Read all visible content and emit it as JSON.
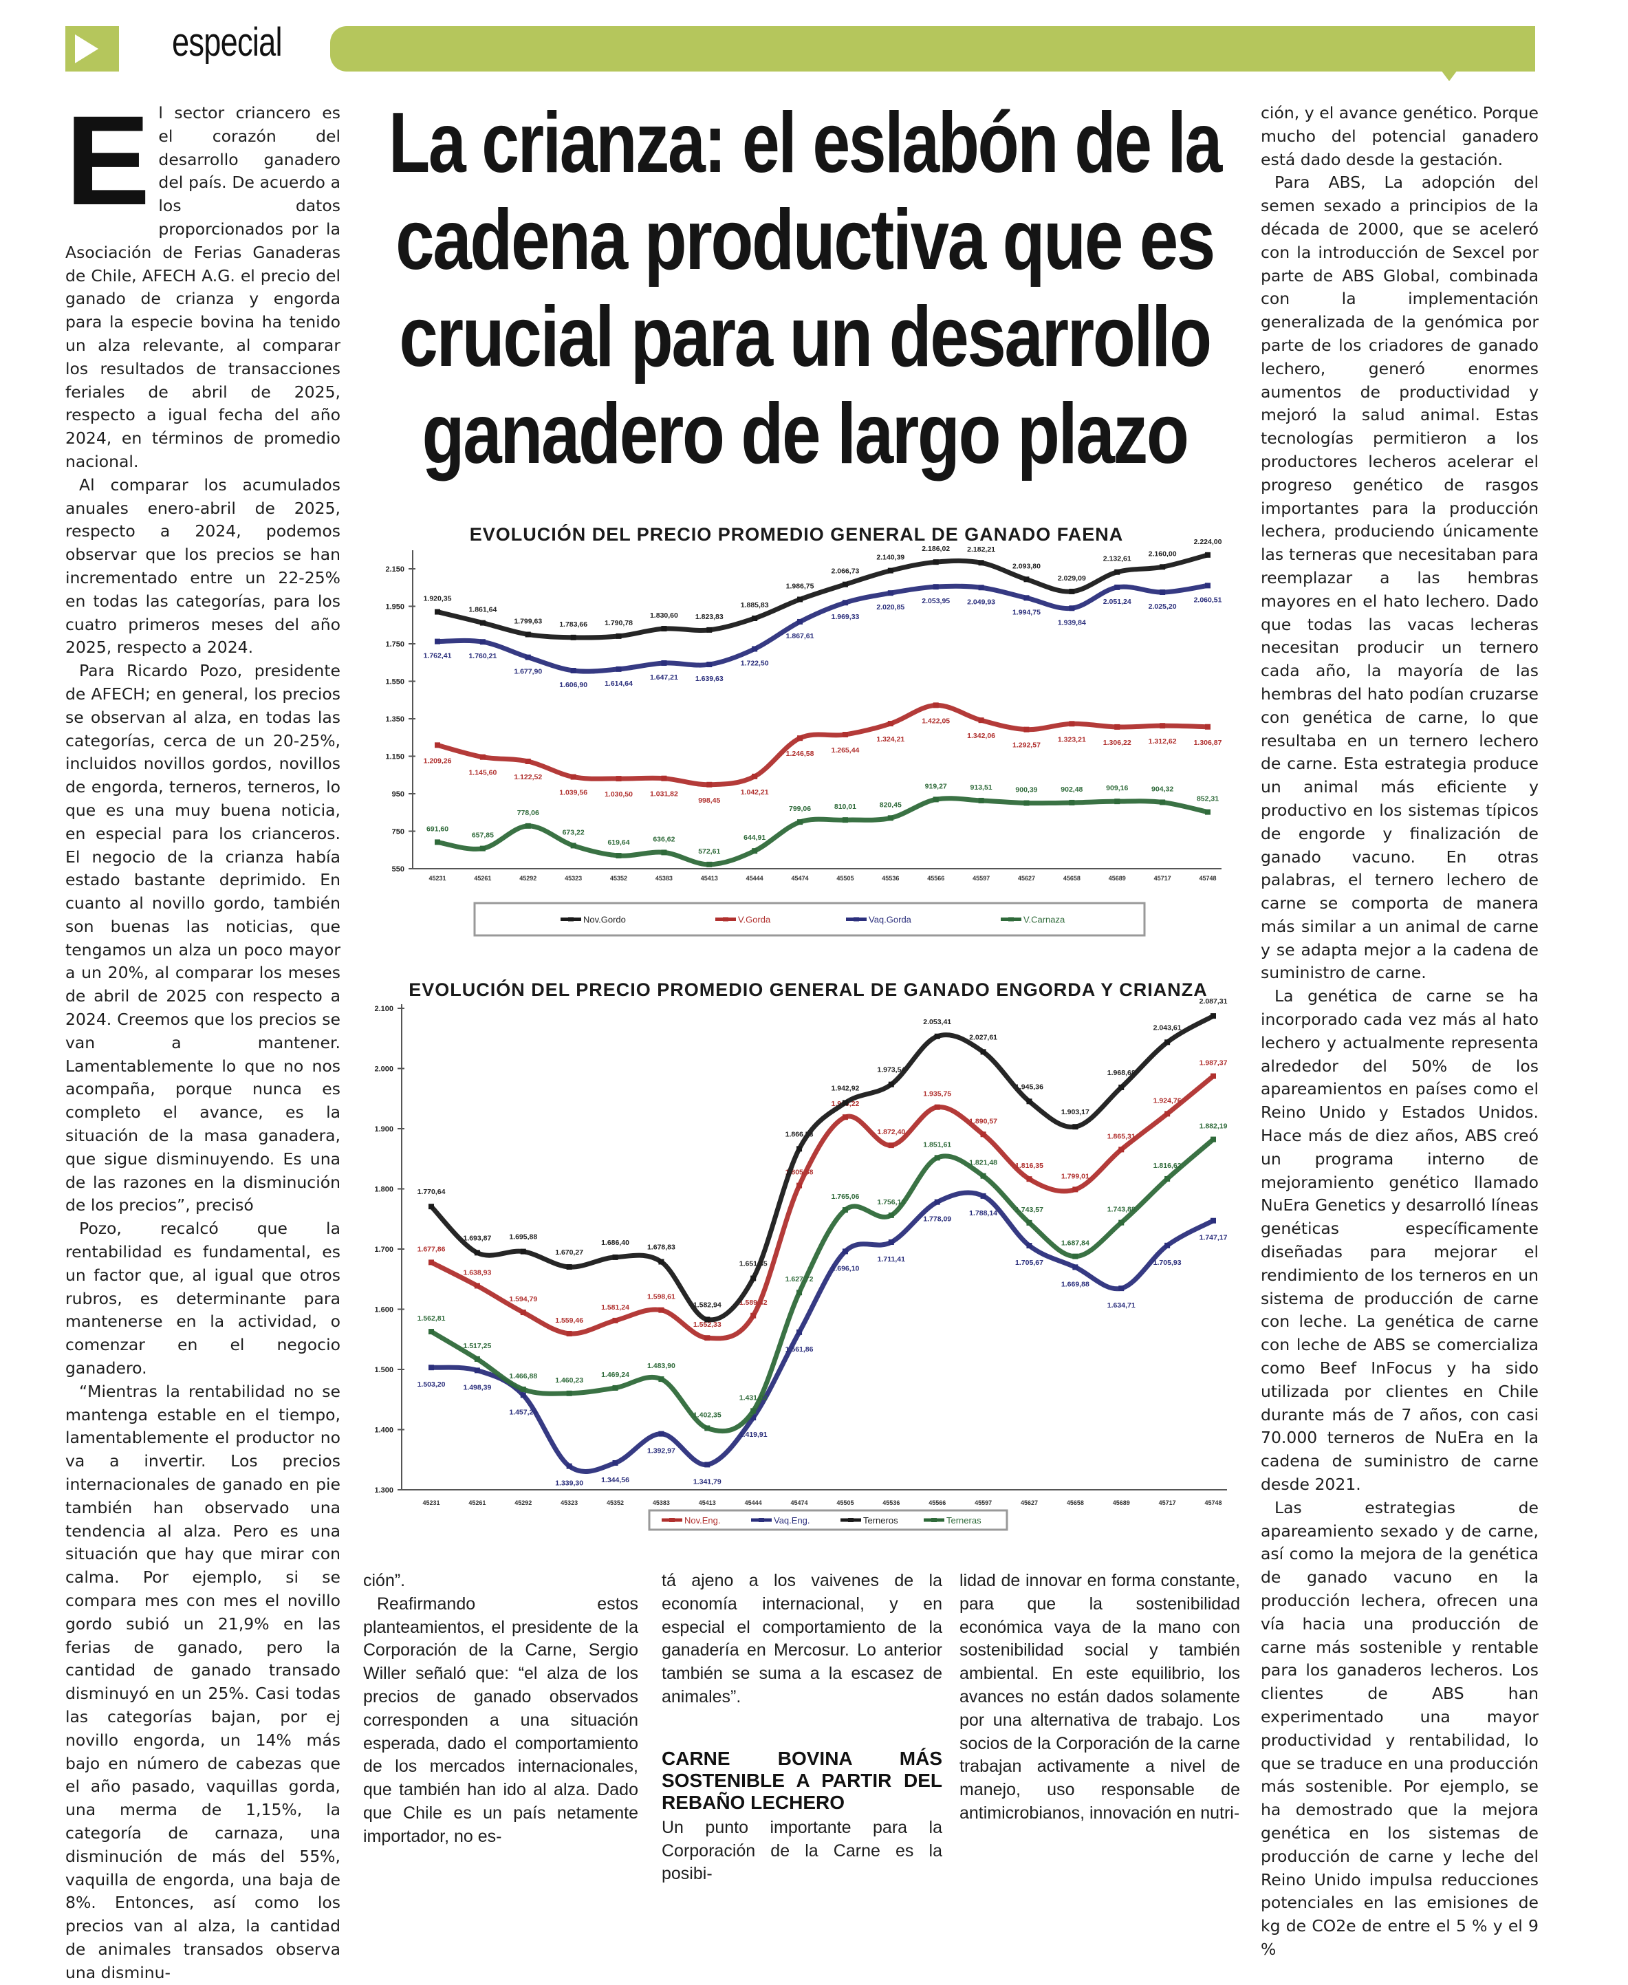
{
  "header": {
    "section_label": "especial",
    "accent_color": "#b5c65c",
    "icon": "play-triangle-icon"
  },
  "headline": {
    "lines": [
      "La crianza: el eslabón de la",
      "cadena productiva que es",
      "crucial para un desarrollo",
      "ganadero de largo plazo"
    ]
  },
  "article": {
    "drop_cap": "E",
    "left_column": [
      "l sector criancero es el corazón del desarrollo ganadero del país. De acuerdo a los datos proporcionados por la Asociación de Ferias Ganaderas de Chile, AFECH A.G. el precio del ganado de crianza y engorda para la especie bovina ha tenido un alza relevante, al comparar los resultados de transacciones feriales de abril de 2025, respecto a igual fecha del año 2024, en términos de promedio nacional.",
      "Al comparar los acumulados anuales enero-abril de 2025, respecto a 2024, podemos observar que los precios se han incrementado entre un 22-25% en todas las categorías, para los cuatro primeros meses del año 2025, respecto a 2024.",
      "Para Ricardo Pozo, presidente de AFECH; en general, los precios se observan al alza, en todas las categorías, cerca de un 20-25%, incluidos novillos gordos, novillos de engorda, terneros, terneros, lo que es una muy buena noticia, en especial para los crianceros. El negocio de la crianza había estado bastante deprimido. En cuanto al novillo gordo, también son buenas las noticias, que tengamos un alza un poco mayor a un 20%, al comparar los meses de abril de 2025 con respecto a 2024. Creemos que los precios se van a mantener. Lamentablemente lo que no nos acompaña, porque nunca es completo el avance, es la situación de la masa ganadera, que sigue disminuyendo. Es una de las razones en la disminución de los precios”, precisó",
      "Pozo, recalcó que la rentabilidad es fundamental, es un factor que, al igual que otros rubros, es determinante para mantenerse en la actividad, o comenzar en el negocio ganadero.",
      "“Mientras la rentabilidad no se mantenga estable en el tiempo, lamentablemente el productor no va a invertir. Los precios internacionales de ganado en pie también han observado una tendencia al alza. Pero es una situación que hay que mirar con calma. Por ejemplo, si se compara mes con mes el novillo gordo subió un 21,9% en las ferias de ganado, pero la cantidad de ganado transado disminuyó en un 25%. Casi todas las categorías bajan, por ej novillo engorda, un 14% más bajo en número de cabezas que el año pasado, vaquillas gorda, una merma de 1,15%, la categoría de carnaza, una disminución de más del 55%, vaquilla de engorda, una baja de 8%. Entonces, así como los precios van al alza, la cantidad de animales transados observa una disminu-"
    ],
    "column_a": [
      "ción”.",
      "Reafirmando estos planteamientos, el presidente de la Corporación de la Carne, Sergio Willer señaló que: “el alza de los precios de ganado observados corresponden a una situación esperada, dado el comportamiento de los mercados internacionales, que también han ido al alza. Dado que Chile es un país netamente importador, no es-"
    ],
    "column_b": [
      "tá ajeno a los vaivenes de la economía internacional, y en especial el comportamiento de la ganadería en Mercosur. Lo anterior también se suma a la escasez de animales”."
    ],
    "subheading": "CARNE BOVINA MÁS SOSTENIBLE A PARTIR DEL REBAÑO LECHERO",
    "column_b_after": [
      "Un punto importante para la Corporación de la Carne es la posibi-"
    ],
    "column_c": [
      "lidad de innovar en forma constante, para que la sostenibilidad económica vaya de la mano con sostenibilidad social y también ambiental. En este equilibrio, los avances no están dados solamente por una alternativa de trabajo. Los socios de la Corporación de la carne trabajan activamente a nivel de manejo, uso responsable de antimicrobianos, innovación en nutri-"
    ],
    "right_column": [
      "ción, y el avance genético. Porque mucho del potencial ganadero está dado desde la gestación.",
      "Para ABS, La adopción del semen sexado a principios de la década de 2000, que se aceleró con la introducción de Sexcel por parte de ABS Global, combinada con la implementación generalizada de la genómica por parte de los criadores de ganado lechero, generó enormes aumentos de productividad y mejoró la salud animal. Estas tecnologías permitieron a los productores lecheros acelerar el progreso genético de rasgos importantes para la producción lechera, produciendo únicamente las terneras que necesitaban para reemplazar a las hembras mayores en el hato lechero. Dado que todas las vacas lecheras necesitan producir un ternero cada año, la mayoría de las hembras del hato podían cruzarse con genética de carne, lo que resultaba en un ternero lechero de carne. Esta estrategia produce un animal más eficiente y productivo en los sistemas típicos de engorde y finalización de ganado vacuno. En otras palabras, el ternero lechero de carne se comporta de manera más similar a un animal de carne y se adapta mejor a la cadena de suministro de carne.",
      "La genética de carne se ha incorporado cada vez más al hato lechero y actualmente representa alrededor del 50% de los apareamientos en países como el Reino Unido y Estados Unidos. Hace más de diez años, ABS creó un programa interno de mejoramiento genético llamado NuEra Genetics y desarrolló líneas genéticas específicamente diseñadas para mejorar el rendimiento de los terneros en un sistema de producción de carne con leche. La genética de carne con leche de ABS se comercializa como Beef InFocus y ha sido utilizada por clientes en Chile durante más de 7 años, con casi 70.000 terneros de NuEra en la cadena de suministro de carne desde 2021.",
      "Las estrategias de apareamiento sexado y de carne, así como la mejora de la genética de ganado vacuno en la producción lechera, ofrecen una vía hacia una producción de carne más sostenible y rentable para los ganaderos lecheros. Los clientes de ABS han experimentado una mayor productividad y rentabilidad, lo que se traduce en una producción más sostenible. Por ejemplo, se ha demostrado que la mejora genética en los sistemas de producción de carne y leche del Reino Unido impulsa reducciones potenciales en las emisiones de kg de CO2e de entre el 5 % y el 9 %"
    ]
  },
  "chart_data": [
    {
      "type": "line",
      "title": "EVOLUCIÓN DEL PRECIO PROMEDIO GENERAL DE GANADO FAENA",
      "xlabel": "",
      "ylabel": "",
      "categories": [
        "45231",
        "45261",
        "45292",
        "45323",
        "45352",
        "45383",
        "45413",
        "45444",
        "45474",
        "45505",
        "45536",
        "45566",
        "45597",
        "45627",
        "45658",
        "45689",
        "45717",
        "45748"
      ],
      "yticks": [
        550,
        750,
        950,
        1150,
        1350,
        1550,
        1750,
        1950,
        2150
      ],
      "ylim": [
        550,
        2150
      ],
      "grid": false,
      "legend_position": "bottom",
      "data_labels": true,
      "series": [
        {
          "name": "Nov.Gordo",
          "color": "#1a1a1a",
          "values": [
            1920.35,
            1861.64,
            1799.63,
            1783.66,
            1790.78,
            1830.6,
            1823.83,
            1885.83,
            1986.75,
            2066.73,
            2140.39,
            2186.02,
            2182.21,
            2093.8,
            2029.09,
            2132.61,
            2160.0,
            2224.0
          ]
        },
        {
          "name": "V.Gorda",
          "color": "#b0302e",
          "values": [
            1209.26,
            1145.6,
            1122.52,
            1039.56,
            1030.5,
            1031.82,
            998.45,
            1042.21,
            1246.58,
            1265.44,
            1324.21,
            1422.05,
            1342.06,
            1292.57,
            1323.21,
            1306.22,
            1312.62,
            1306.87
          ]
        },
        {
          "name": "Vaq.Gorda",
          "color": "#2b2f7c",
          "values": [
            1762.41,
            1760.21,
            1677.9,
            1606.9,
            1614.64,
            1647.21,
            1639.63,
            1722.5,
            1867.61,
            1969.33,
            2020.85,
            2053.95,
            2049.93,
            1994.75,
            1939.84,
            2051.24,
            2025.2,
            2060.51
          ]
        },
        {
          "name": "V.Carnaza",
          "color": "#2f6a3a",
          "values": [
            691.6,
            657.85,
            778.06,
            673.22,
            619.64,
            636.62,
            572.61,
            644.91,
            799.06,
            810.01,
            820.45,
            919.27,
            913.51,
            900.39,
            902.48,
            909.16,
            904.32,
            852.31
          ]
        }
      ]
    },
    {
      "type": "line",
      "title": "EVOLUCIÓN DEL PRECIO PROMEDIO GENERAL DE GANADO ENGORDA Y CRIANZA",
      "xlabel": "",
      "ylabel": "",
      "categories": [
        "45231",
        "45261",
        "45292",
        "45323",
        "45352",
        "45383",
        "45413",
        "45444",
        "45474",
        "45505",
        "45536",
        "45566",
        "45597",
        "45627",
        "45658",
        "45689",
        "45717",
        "45748"
      ],
      "yticks": [
        1300,
        1400,
        1500,
        1600,
        1700,
        1800,
        1900,
        2000,
        2100
      ],
      "ylim": [
        1300,
        2100
      ],
      "grid": false,
      "legend_position": "bottom",
      "data_labels": true,
      "series": [
        {
          "name": "Nov.Eng.",
          "color": "#b0302e",
          "values": [
            1677.86,
            1638.93,
            1594.79,
            1559.46,
            1581.24,
            1598.61,
            1552.33,
            1589.42,
            1805.58,
            1919.22,
            1872.4,
            1935.75,
            1890.57,
            1816.35,
            1799.01,
            1865.31,
            1924.76,
            1987.37
          ]
        },
        {
          "name": "Vaq.Eng.",
          "color": "#2b2f7c",
          "values": [
            1503.2,
            1498.39,
            1457.29,
            1339.3,
            1344.56,
            1392.97,
            1341.79,
            1419.91,
            1561.86,
            1696.1,
            1711.41,
            1778.09,
            1788.14,
            1705.67,
            1669.88,
            1634.71,
            1705.93,
            1747.17
          ]
        },
        {
          "name": "Terneros",
          "color": "#1a1a1a",
          "values": [
            1770.64,
            1693.87,
            1695.88,
            1670.27,
            1686.4,
            1678.83,
            1582.94,
            1651.35,
            1866.53,
            1942.92,
            1973.54,
            2053.41,
            2027.61,
            1945.36,
            1903.17,
            1968.68,
            2043.61,
            2087.31
          ]
        },
        {
          "name": "Terneras",
          "color": "#2f6a3a",
          "values": [
            1562.81,
            1517.25,
            1466.88,
            1460.23,
            1469.24,
            1483.9,
            1402.35,
            1431.02,
            1627.72,
            1765.06,
            1756.13,
            1851.61,
            1821.48,
            1743.57,
            1687.84,
            1743.88,
            1816.62,
            1882.19
          ]
        }
      ]
    }
  ]
}
